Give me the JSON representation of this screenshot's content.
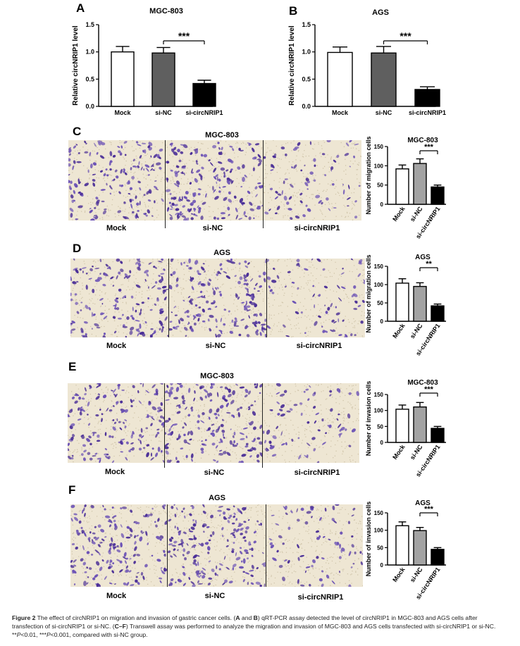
{
  "panels": {
    "A": {
      "label": "A",
      "title": "MGC-803"
    },
    "B": {
      "label": "B",
      "title": "AGS"
    },
    "C": {
      "label": "C",
      "title": "MGC-803",
      "labels": [
        "Mock",
        "si-NC",
        "si-circNRIP1"
      ]
    },
    "D": {
      "label": "D",
      "title": "AGS",
      "labels": [
        "Mock",
        "si-NC",
        "si-circNRIP1"
      ]
    },
    "E": {
      "label": "E",
      "title": "MGC-803",
      "labels": [
        "Mock",
        "si-NC",
        "si-circNRIP1"
      ]
    },
    "F": {
      "label": "F",
      "title": "AGS",
      "labels": [
        "Mock",
        "si-NC",
        "si-circNRIP1"
      ]
    }
  },
  "colors": {
    "mock": "#ffffff",
    "sinc_dark": "#5f5f5f",
    "sinc_light": "#a3a3a3",
    "si": "#000000",
    "cells": "#4b2f97",
    "background": "#eee6d3"
  },
  "chart_data": [
    {
      "id": "A",
      "type": "bar",
      "title": "MGC-803",
      "ylabel": "Relative circNRIP1 level",
      "categories": [
        "Mock",
        "si-NC",
        "si-circNRIP1"
      ],
      "values": [
        1.0,
        0.98,
        0.42
      ],
      "errors": [
        0.1,
        0.1,
        0.06
      ],
      "ylim": [
        0,
        1.5
      ],
      "yticks": [
        "0.0",
        "0.5",
        "1.0",
        "1.5"
      ],
      "significance": "***"
    },
    {
      "id": "B",
      "type": "bar",
      "title": "AGS",
      "ylabel": "Relative circNRIP1 level",
      "categories": [
        "Mock",
        "si-NC",
        "si-circNRIP1"
      ],
      "values": [
        0.99,
        0.98,
        0.31
      ],
      "errors": [
        0.1,
        0.12,
        0.05
      ],
      "ylim": [
        0,
        1.5
      ],
      "yticks": [
        "0.0",
        "0.5",
        "1.0",
        "1.5"
      ],
      "significance": "***"
    },
    {
      "id": "C",
      "type": "bar",
      "title": "MGC-803",
      "ylabel": "Number of migration cells",
      "categories": [
        "Mock",
        "si-NC",
        "si-circNRIP1"
      ],
      "values": [
        92,
        106,
        45
      ],
      "errors": [
        10,
        12,
        5
      ],
      "ylim": [
        0,
        150
      ],
      "yticks": [
        "0",
        "50",
        "100",
        "150"
      ],
      "significance": "***"
    },
    {
      "id": "D",
      "type": "bar",
      "title": "AGS",
      "ylabel": "Number of migration cells",
      "categories": [
        "Mock",
        "si-NC",
        "si-circNRIP1"
      ],
      "values": [
        104,
        95,
        42
      ],
      "errors": [
        12,
        10,
        5
      ],
      "ylim": [
        0,
        150
      ],
      "yticks": [
        "0",
        "50",
        "100",
        "150"
      ],
      "significance": "**"
    },
    {
      "id": "E",
      "type": "bar",
      "title": "MGC-803",
      "ylabel": "Number of invasion cells",
      "categories": [
        "Mock",
        "si-NC",
        "si-circNRIP1"
      ],
      "values": [
        104,
        111,
        44
      ],
      "errors": [
        13,
        14,
        6
      ],
      "ylim": [
        0,
        150
      ],
      "yticks": [
        "0",
        "50",
        "100",
        "150"
      ],
      "significance": "***"
    },
    {
      "id": "F",
      "type": "bar",
      "title": "AGS",
      "ylabel": "Number of invasion cells",
      "categories": [
        "Mock",
        "si-NC",
        "si-circNRIP1"
      ],
      "values": [
        113,
        99,
        45
      ],
      "errors": [
        11,
        9,
        5
      ],
      "ylim": [
        0,
        150
      ],
      "yticks": [
        "0",
        "50",
        "100",
        "150"
      ],
      "significance": "***"
    }
  ],
  "caption": {
    "fig": "Figure 2",
    "p1": " The effect of circNRIP1 on migration and invasion of gastric cancer cells. (",
    "ab_a": "A",
    "and": " and ",
    "ab_b": "B",
    "p2": ") qRT-PCR assay detected the level of circNRIP1 in MGC-803 and AGS cells after transfection of si-circNRIP1 or si-NC. (",
    "cf": "C–F",
    "p3": ") Transwell assay was performed to analyze the migration and invasion of MGC-803 and AGS cells transfected with si-circNRIP1 or si-NC. **",
    "p": "P",
    "p4": "<0.01, ***",
    "p5": "<0.001, compared with si-NC group."
  }
}
